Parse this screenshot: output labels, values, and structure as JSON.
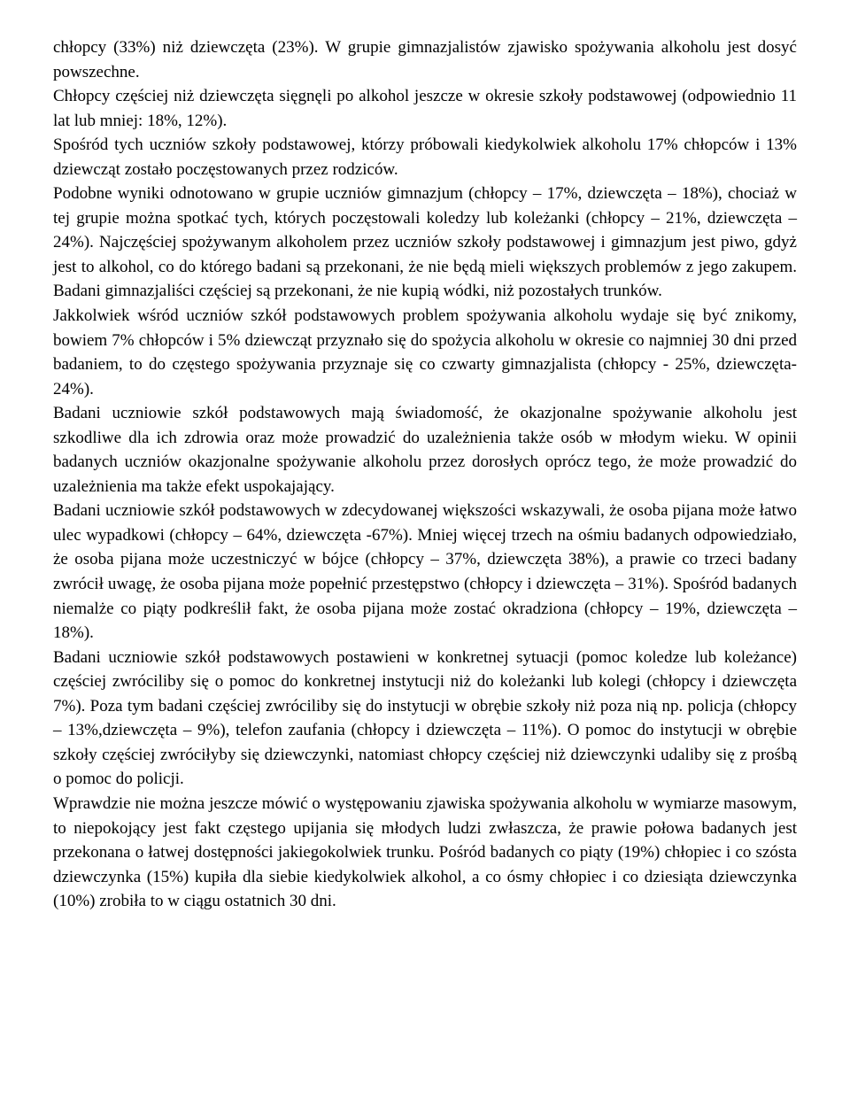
{
  "document": {
    "paragraphs": [
      "chłopcy (33%) niż dziewczęta (23%). W grupie gimnazjalistów zjawisko spożywania alkoholu jest dosyć powszechne.",
      "Chłopcy częściej niż dziewczęta sięgnęli po alkohol jeszcze w okresie szkoły podstawowej (odpowiednio 11 lat lub mniej: 18%, 12%).",
      "Spośród tych uczniów szkoły podstawowej, którzy próbowali kiedykolwiek alkoholu 17% chłopców i 13% dziewcząt zostało poczęstowanych przez rodziców.",
      "Podobne wyniki odnotowano w grupie uczniów gimnazjum (chłopcy – 17%, dziewczęta – 18%), chociaż w tej grupie można spotkać tych, których poczęstowali koledzy lub koleżanki (chłopcy – 21%, dziewczęta – 24%). Najczęściej spożywanym alkoholem przez uczniów szkoły podstawowej i gimnazjum jest piwo, gdyż jest to alkohol, co do którego badani są przekonani, że nie będą mieli większych problemów z jego zakupem. Badani gimnazjaliści częściej są przekonani, że nie kupią wódki, niż pozostałych trunków.",
      "Jakkolwiek wśród uczniów szkół podstawowych problem spożywania alkoholu wydaje się być znikomy, bowiem 7% chłopców i 5% dziewcząt przyznało się do spożycia alkoholu w okresie co najmniej 30 dni przed badaniem, to do częstego spożywania przyznaje się co czwarty gimnazjalista (chłopcy - 25%, dziewczęta- 24%).",
      "Badani uczniowie szkół podstawowych mają świadomość, że okazjonalne spożywanie alkoholu jest szkodliwe dla ich zdrowia oraz może prowadzić do uzależnienia także osób w młodym wieku. W opinii badanych uczniów okazjonalne spożywanie alkoholu przez dorosłych oprócz tego, że może prowadzić do uzależnienia ma także efekt uspokajający.",
      "Badani uczniowie szkół podstawowych w zdecydowanej większości wskazywali, że osoba pijana może łatwo ulec wypadkowi (chłopcy – 64%, dziewczęta -67%). Mniej więcej trzech na ośmiu badanych odpowiedziało, że osoba pijana może uczestniczyć w bójce (chłopcy – 37%, dziewczęta 38%), a prawie co trzeci badany zwrócił uwagę, że osoba pijana może popełnić przestępstwo (chłopcy i dziewczęta – 31%). Spośród badanych niemalże co piąty podkreślił fakt, że osoba pijana może zostać okradziona (chłopcy – 19%, dziewczęta – 18%).",
      "Badani uczniowie szkół podstawowych postawieni w konkretnej sytuacji (pomoc koledze lub koleżance) częściej zwróciliby się o pomoc do konkretnej instytucji niż do koleżanki lub kolegi (chłopcy i dziewczęta 7%). Poza tym badani częściej zwróciliby się do instytucji w obrębie szkoły niż poza nią np. policja (chłopcy – 13%,dziewczęta – 9%), telefon zaufania (chłopcy i dziewczęta – 11%). O pomoc do instytucji w obrębie szkoły częściej zwróciłyby się dziewczynki, natomiast chłopcy częściej niż dziewczynki udaliby się z prośbą o pomoc do policji.",
      "Wprawdzie nie można jeszcze mówić o występowaniu zjawiska spożywania alkoholu w wymiarze masowym, to niepokojący jest fakt częstego upijania się młodych ludzi zwłaszcza, że prawie połowa badanych jest przekonana o łatwej dostępności jakiegokolwiek trunku. Pośród badanych co piąty (19%) chłopiec i co szósta dziewczynka (15%) kupiła dla siebie kiedykolwiek alkohol, a co ósmy chłopiec i co dziesiąta dziewczynka (10%) zrobiła to w ciągu ostatnich 30 dni."
    ]
  }
}
